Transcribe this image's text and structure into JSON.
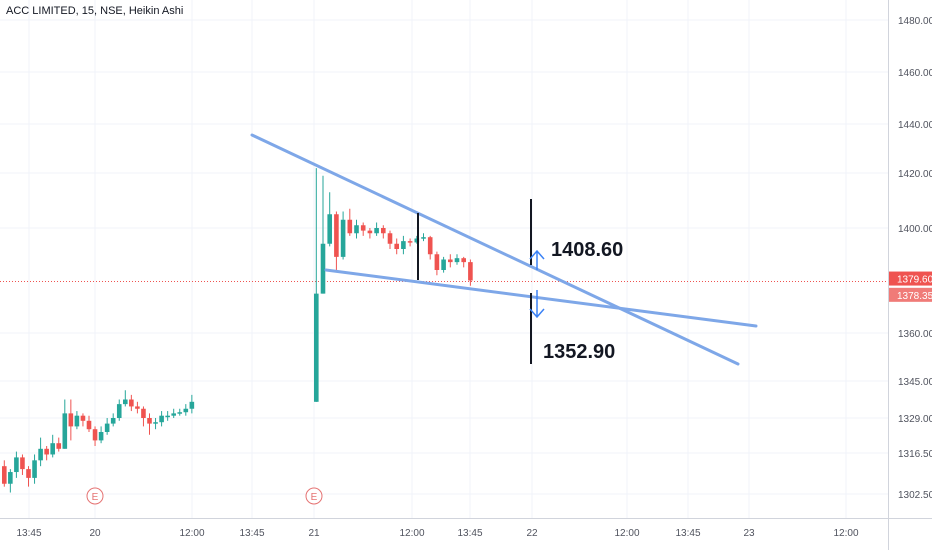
{
  "title": "ACC LIMITED, 15, NSE, Heikin Ashi",
  "colors": {
    "up": "#26a69a",
    "down": "#ef5350",
    "trendline": "#7ea7e8",
    "grid": "#f0f3fa",
    "axis_text": "#50535e",
    "price_line": "#ef5350",
    "event_marker": "#e57373"
  },
  "chart_data": {
    "type": "candlestick",
    "y_axis": {
      "ticks": [
        {
          "value": 1480,
          "label": "1480.00"
        },
        {
          "value": 1460,
          "label": "1460.00"
        },
        {
          "value": 1440,
          "label": "1440.00"
        },
        {
          "value": 1420,
          "label": "1420.00"
        },
        {
          "value": 1400,
          "label": "1400.00"
        },
        {
          "value": 1360,
          "label": "1360.00"
        },
        {
          "value": 1345,
          "label": "1345.00"
        },
        {
          "value": 1329,
          "label": "1329.00"
        },
        {
          "value": 1316.5,
          "label": "1316.50"
        },
        {
          "value": 1302.5,
          "label": "1302.50"
        }
      ]
    },
    "x_axis": {
      "ticks": [
        "13:45",
        "20",
        "12:00",
        "13:45",
        "21",
        "12:00",
        "13:45",
        "22",
        "12:00",
        "13:45",
        "23",
        "12:00"
      ]
    },
    "price_labels": [
      {
        "value": 1379.6,
        "label": "1379.60",
        "style": "current"
      },
      {
        "value": 1378.35,
        "label": "1378.35",
        "style": "secondary"
      }
    ],
    "candles": [
      [
        1312,
        1306,
        1314,
        1305
      ],
      [
        1306,
        1310,
        1311,
        1303
      ],
      [
        1310,
        1315,
        1317,
        1308
      ],
      [
        1315,
        1311,
        1316,
        1309
      ],
      [
        1311,
        1308,
        1312,
        1305
      ],
      [
        1308,
        1314,
        1316,
        1306
      ],
      [
        1314,
        1318,
        1322,
        1312
      ],
      [
        1318,
        1316,
        1319,
        1314
      ],
      [
        1316,
        1320,
        1323,
        1315
      ],
      [
        1320,
        1318,
        1322,
        1317
      ],
      [
        1318,
        1331,
        1337,
        1318
      ],
      [
        1331,
        1326,
        1337,
        1321
      ],
      [
        1326,
        1330,
        1332,
        1325
      ],
      [
        1330,
        1328,
        1331,
        1326
      ],
      [
        1328,
        1325,
        1330,
        1324
      ],
      [
        1325,
        1321,
        1326,
        1319
      ],
      [
        1321,
        1324,
        1326,
        1320
      ],
      [
        1324,
        1327,
        1329,
        1323
      ],
      [
        1327,
        1329,
        1331,
        1326
      ],
      [
        1329,
        1335,
        1337,
        1328
      ],
      [
        1335,
        1337,
        1341,
        1334
      ],
      [
        1337,
        1334,
        1339,
        1332
      ],
      [
        1334,
        1333,
        1336,
        1331
      ],
      [
        1333,
        1329,
        1334,
        1326
      ],
      [
        1329,
        1327,
        1331,
        1323
      ],
      [
        1327,
        1327.5,
        1329,
        1325
      ],
      [
        1327.5,
        1330,
        1332,
        1326
      ],
      [
        1330,
        1330,
        1332,
        1328
      ],
      [
        1330,
        1331,
        1333,
        1329
      ],
      [
        1331,
        1331.5,
        1333,
        1330
      ],
      [
        1331.5,
        1333,
        1335,
        1330
      ],
      [
        1333,
        1336,
        1339,
        1331
      ],
      [
        1336,
        1375,
        1422,
        1336
      ],
      [
        1375,
        1394,
        1419,
        1375
      ],
      [
        1394,
        1405,
        1413,
        1393
      ],
      [
        1405,
        1389,
        1406,
        1384
      ],
      [
        1389,
        1403,
        1406,
        1388
      ],
      [
        1403,
        1398,
        1407,
        1397
      ],
      [
        1398,
        1401,
        1403,
        1396
      ],
      [
        1401,
        1399,
        1402,
        1397
      ],
      [
        1399,
        1398,
        1400,
        1396
      ],
      [
        1398,
        1400,
        1402,
        1397
      ],
      [
        1400,
        1398,
        1401,
        1396
      ],
      [
        1398,
        1394,
        1399,
        1392
      ],
      [
        1394,
        1392,
        1396,
        1390
      ],
      [
        1392,
        1395,
        1397,
        1390
      ],
      [
        1395,
        1394.5,
        1396,
        1393
      ],
      [
        1394.5,
        1396,
        1397,
        1394
      ],
      [
        1396,
        1396.5,
        1398,
        1395
      ],
      [
        1396.5,
        1390,
        1397,
        1388
      ],
      [
        1390,
        1384,
        1391,
        1382
      ],
      [
        1384,
        1388,
        1389,
        1383
      ],
      [
        1388,
        1387,
        1390,
        1385
      ],
      [
        1387,
        1388.5,
        1390,
        1386
      ],
      [
        1388.5,
        1387,
        1389,
        1385
      ],
      [
        1387,
        1380,
        1388,
        1378
      ]
    ],
    "trendlines": [
      {
        "x1": 252,
        "y1": 135,
        "x2": 738,
        "y2": 364
      },
      {
        "x1": 326,
        "y1": 270,
        "x2": 756,
        "y2": 326
      }
    ],
    "annotations": [
      {
        "text": "1408.60",
        "direction": "up"
      },
      {
        "text": "1352.90",
        "direction": "down"
      }
    ],
    "event_markers": [
      "E",
      "E"
    ]
  }
}
